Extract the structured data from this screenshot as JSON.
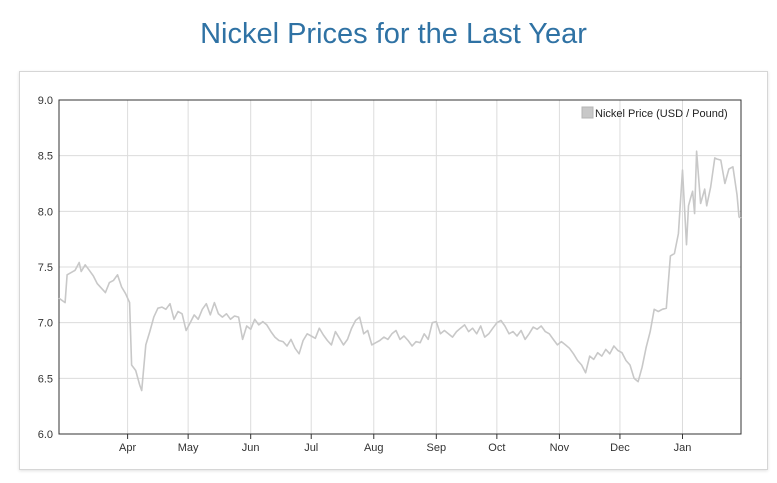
{
  "page": {
    "title": "Nickel Prices for the Last Year"
  },
  "colors": {
    "title": "#2f72a4",
    "series": "#c8c8c8",
    "grid": "#dcdcdc",
    "axis": "#333333"
  },
  "chart_data": {
    "type": "line",
    "title": "",
    "xlabel": "",
    "ylabel": "",
    "ylim": [
      6.0,
      9.0
    ],
    "yticks": [
      "6.0",
      "6.5",
      "7.0",
      "7.5",
      "8.0",
      "8.5",
      "9.0"
    ],
    "xticks": [
      "Apr",
      "May",
      "Jun",
      "Jul",
      "Aug",
      "Sep",
      "Oct",
      "Nov",
      "Dec",
      "Jan"
    ],
    "grid": true,
    "legend": {
      "position": "top-right",
      "entries": [
        "Nickel Price (USD / Pound)"
      ]
    },
    "series": [
      {
        "name": "Nickel Price (USD / Pound)",
        "color": "#c8c8c8",
        "x": [
          "2021-02-26",
          "2021-03-01",
          "2021-03-02",
          "2021-03-04",
          "2021-03-06",
          "2021-03-08",
          "2021-03-09",
          "2021-03-11",
          "2021-03-13",
          "2021-03-15",
          "2021-03-17",
          "2021-03-19",
          "2021-03-21",
          "2021-03-23",
          "2021-03-25",
          "2021-03-27",
          "2021-03-29",
          "2021-03-31",
          "2021-04-02",
          "2021-04-03",
          "2021-04-05",
          "2021-04-07",
          "2021-04-08",
          "2021-04-10",
          "2021-04-12",
          "2021-04-14",
          "2021-04-16",
          "2021-04-18",
          "2021-04-20",
          "2021-04-22",
          "2021-04-24",
          "2021-04-26",
          "2021-04-28",
          "2021-04-30",
          "2021-05-02",
          "2021-05-04",
          "2021-05-06",
          "2021-05-08",
          "2021-05-10",
          "2021-05-12",
          "2021-05-14",
          "2021-05-16",
          "2021-05-18",
          "2021-05-20",
          "2021-05-22",
          "2021-05-24",
          "2021-05-26",
          "2021-05-28",
          "2021-05-30",
          "2021-06-01",
          "2021-06-03",
          "2021-06-05",
          "2021-06-07",
          "2021-06-09",
          "2021-06-11",
          "2021-06-13",
          "2021-06-15",
          "2021-06-17",
          "2021-06-19",
          "2021-06-21",
          "2021-06-23",
          "2021-06-25",
          "2021-06-27",
          "2021-06-29",
          "2021-07-01",
          "2021-07-03",
          "2021-07-05",
          "2021-07-07",
          "2021-07-09",
          "2021-07-11",
          "2021-07-13",
          "2021-07-15",
          "2021-07-17",
          "2021-07-19",
          "2021-07-21",
          "2021-07-23",
          "2021-07-25",
          "2021-07-27",
          "2021-07-29",
          "2021-07-31",
          "2021-08-02",
          "2021-08-04",
          "2021-08-06",
          "2021-08-08",
          "2021-08-10",
          "2021-08-12",
          "2021-08-14",
          "2021-08-16",
          "2021-08-18",
          "2021-08-20",
          "2021-08-22",
          "2021-08-24",
          "2021-08-26",
          "2021-08-28",
          "2021-08-30",
          "2021-09-01",
          "2021-09-03",
          "2021-09-05",
          "2021-09-07",
          "2021-09-09",
          "2021-09-11",
          "2021-09-13",
          "2021-09-15",
          "2021-09-17",
          "2021-09-19",
          "2021-09-21",
          "2021-09-23",
          "2021-09-25",
          "2021-09-27",
          "2021-09-29",
          "2021-10-01",
          "2021-10-03",
          "2021-10-05",
          "2021-10-07",
          "2021-10-09",
          "2021-10-11",
          "2021-10-13",
          "2021-10-15",
          "2021-10-17",
          "2021-10-19",
          "2021-10-21",
          "2021-10-23",
          "2021-10-25",
          "2021-10-27",
          "2021-10-29",
          "2021-10-31",
          "2021-11-02",
          "2021-11-04",
          "2021-11-06",
          "2021-11-08",
          "2021-11-10",
          "2021-11-12",
          "2021-11-14",
          "2021-11-16",
          "2021-11-18",
          "2021-11-20",
          "2021-11-22",
          "2021-11-24",
          "2021-11-26",
          "2021-11-28",
          "2021-11-30",
          "2021-12-02",
          "2021-12-04",
          "2021-12-06",
          "2021-12-08",
          "2021-12-10",
          "2021-12-12",
          "2021-12-14",
          "2021-12-16",
          "2021-12-18",
          "2021-12-20",
          "2021-12-22",
          "2021-12-24",
          "2021-12-26",
          "2021-12-28",
          "2021-12-30",
          "2022-01-01",
          "2022-01-03",
          "2022-01-04",
          "2022-01-05",
          "2022-01-06",
          "2022-01-07",
          "2022-01-08",
          "2022-01-10",
          "2022-01-12",
          "2022-01-13",
          "2022-01-15",
          "2022-01-17",
          "2022-01-18",
          "2022-01-20",
          "2022-01-22",
          "2022-01-24",
          "2022-01-26",
          "2022-01-28",
          "2022-01-29",
          "2022-01-30"
        ],
        "values": [
          7.22,
          7.18,
          7.43,
          7.45,
          7.47,
          7.54,
          7.46,
          7.52,
          7.47,
          7.42,
          7.35,
          7.31,
          7.27,
          7.36,
          7.38,
          7.43,
          7.32,
          7.26,
          7.18,
          6.62,
          6.57,
          6.44,
          6.39,
          6.8,
          6.92,
          7.05,
          7.13,
          7.14,
          7.12,
          7.17,
          7.03,
          7.1,
          7.08,
          6.93,
          7.0,
          7.07,
          7.03,
          7.12,
          7.17,
          7.07,
          7.18,
          7.08,
          7.05,
          7.08,
          7.03,
          7.06,
          7.05,
          6.85,
          6.97,
          6.94,
          7.03,
          6.98,
          7.01,
          6.98,
          6.92,
          6.87,
          6.84,
          6.83,
          6.79,
          6.85,
          6.77,
          6.72,
          6.84,
          6.9,
          6.88,
          6.86,
          6.95,
          6.89,
          6.84,
          6.8,
          6.92,
          6.86,
          6.8,
          6.85,
          6.95,
          7.02,
          7.05,
          6.9,
          6.93,
          6.8,
          6.82,
          6.84,
          6.87,
          6.85,
          6.9,
          6.93,
          6.85,
          6.88,
          6.84,
          6.79,
          6.83,
          6.82,
          6.9,
          6.85,
          7.0,
          7.01,
          6.9,
          6.93,
          6.9,
          6.87,
          6.92,
          6.95,
          6.98,
          6.92,
          6.95,
          6.9,
          6.97,
          6.87,
          6.9,
          6.95,
          7.0,
          7.02,
          6.97,
          6.9,
          6.92,
          6.88,
          6.93,
          6.85,
          6.9,
          6.96,
          6.94,
          6.97,
          6.92,
          6.9,
          6.85,
          6.8,
          6.83,
          6.8,
          6.77,
          6.72,
          6.66,
          6.62,
          6.55,
          6.7,
          6.67,
          6.73,
          6.7,
          6.76,
          6.72,
          6.79,
          6.75,
          6.73,
          6.66,
          6.62,
          6.5,
          6.47,
          6.6,
          6.78,
          6.92,
          7.12,
          7.1,
          7.12,
          7.13,
          7.6,
          7.62,
          7.8,
          8.37,
          7.7,
          8.05,
          8.12,
          8.18,
          7.98,
          8.54,
          8.07,
          8.2,
          8.05,
          8.22,
          8.48,
          8.47,
          8.46,
          8.25,
          8.38,
          8.4,
          8.15,
          7.95,
          7.94
        ]
      }
    ]
  }
}
